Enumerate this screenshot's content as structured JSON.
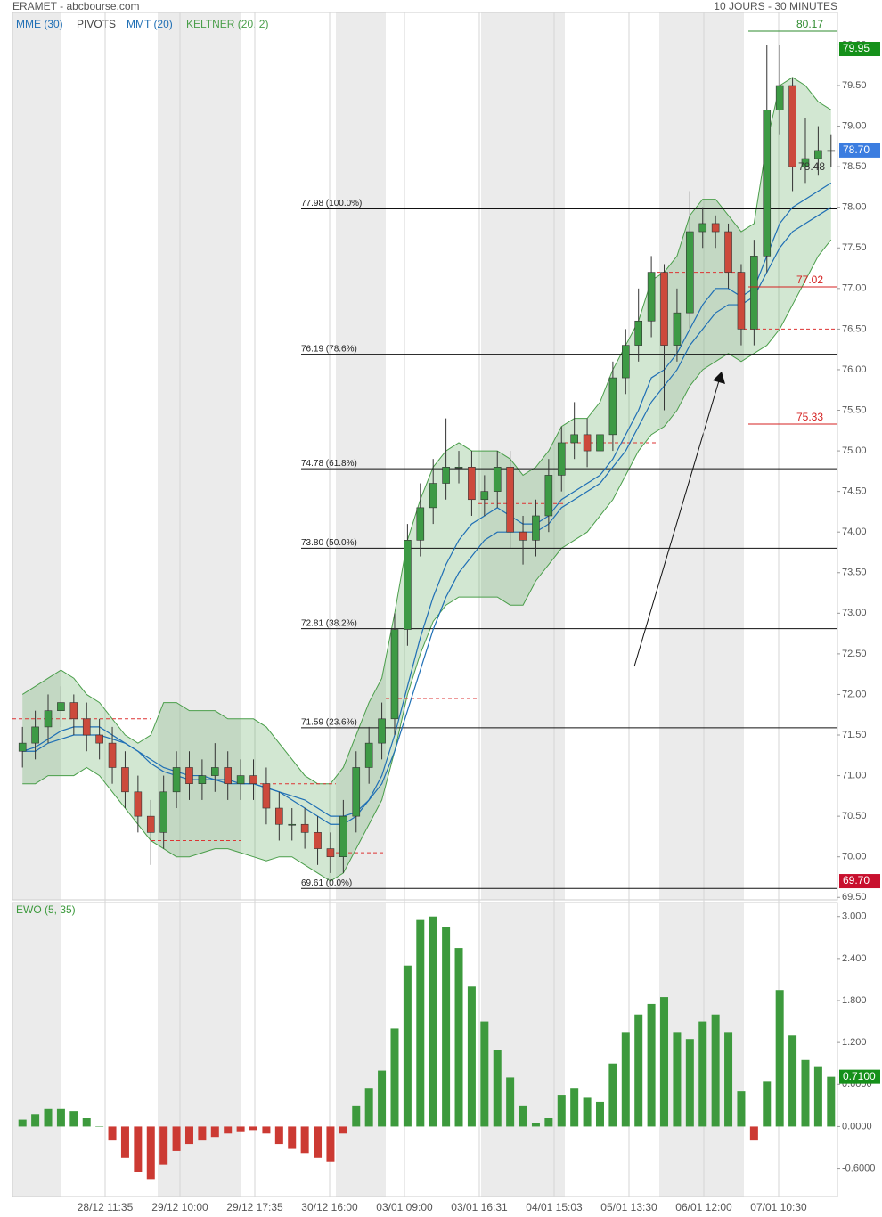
{
  "chart_data": [
    {
      "type": "candlestick",
      "title": "ERAMET - abcbourse.com",
      "subtitle": "10 JOURS - 30 MINUTES",
      "x_labels": [
        "28/12 11:35",
        "29/12 10:00",
        "29/12 17:35",
        "30/12 16:00",
        "03/01 09:00",
        "03/01 16:31",
        "04/01 15:03",
        "05/01 13:30",
        "06/01 12:00",
        "07/01 10:30"
      ],
      "ylim": [
        69.47,
        80.4
      ],
      "yticks": [
        {
          "value": 80,
          "label": "80.00"
        },
        {
          "value": 79.5,
          "label": "79.50"
        },
        {
          "value": 79,
          "label": "79.00"
        },
        {
          "value": 78.5,
          "label": "78.50"
        },
        {
          "value": 78,
          "label": "78.00"
        },
        {
          "value": 77.5,
          "label": "77.50"
        },
        {
          "value": 77,
          "label": "77.00"
        },
        {
          "value": 76.5,
          "label": "76.50"
        },
        {
          "value": 76,
          "label": "76.00"
        },
        {
          "value": 75.5,
          "label": "75.50"
        },
        {
          "value": 75,
          "label": "75.00"
        },
        {
          "value": 74.5,
          "label": "74.50"
        },
        {
          "value": 74,
          "label": "74.00"
        },
        {
          "value": 73.5,
          "label": "73.50"
        },
        {
          "value": 73,
          "label": "73.00"
        },
        {
          "value": 72.5,
          "label": "72.50"
        },
        {
          "value": 72,
          "label": "72.00"
        },
        {
          "value": 71.5,
          "label": "71.50"
        },
        {
          "value": 71,
          "label": "71.00"
        },
        {
          "value": 70.5,
          "label": "70.50"
        },
        {
          "value": 70,
          "label": "70.00"
        },
        {
          "value": 69.5,
          "label": "69.50"
        }
      ],
      "up_color": "#3d9a45",
      "down_color": "#cc4a3c",
      "open": [
        71.3,
        71.4,
        71.6,
        71.8,
        71.9,
        71.7,
        71.5,
        71.4,
        71.1,
        70.8,
        70.5,
        70.3,
        70.8,
        71.1,
        70.9,
        71.0,
        71.1,
        70.9,
        71.0,
        70.9,
        70.6,
        70.4,
        70.4,
        70.3,
        70.1,
        70.0,
        70.5,
        71.1,
        71.4,
        71.7,
        72.8,
        73.9,
        74.3,
        74.6,
        74.8,
        74.8,
        74.4,
        74.5,
        74.8,
        74.0,
        73.9,
        74.2,
        74.7,
        75.1,
        75.2,
        75.0,
        75.2,
        75.9,
        76.3,
        76.6,
        77.2,
        76.3,
        76.7,
        77.7,
        77.8,
        77.7,
        77.2,
        76.5,
        77.4,
        79.2,
        79.5,
        78.5,
        78.6,
        78.7
      ],
      "high": [
        71.6,
        71.8,
        72.0,
        72.1,
        72.0,
        71.9,
        71.7,
        71.6,
        71.3,
        71.0,
        70.7,
        71.0,
        71.3,
        71.3,
        71.2,
        71.4,
        71.3,
        71.2,
        71.2,
        71.1,
        70.8,
        70.6,
        70.6,
        70.5,
        70.3,
        70.7,
        71.3,
        71.6,
        71.9,
        73.0,
        74.1,
        74.6,
        74.9,
        75.4,
        75.0,
        75.0,
        74.7,
        75.0,
        75.0,
        74.2,
        74.4,
        74.9,
        75.3,
        75.6,
        75.4,
        75.4,
        76.1,
        76.5,
        77.0,
        77.4,
        77.3,
        77.0,
        78.2,
        78.0,
        77.9,
        77.8,
        77.3,
        77.6,
        80.0,
        80.0,
        79.6,
        79.1,
        79.0,
        78.9
      ],
      "low": [
        71.1,
        71.2,
        71.4,
        71.6,
        71.5,
        71.3,
        71.2,
        70.9,
        70.6,
        70.3,
        69.9,
        70.1,
        70.6,
        70.7,
        70.7,
        70.8,
        70.7,
        70.7,
        70.7,
        70.4,
        70.2,
        70.2,
        70.1,
        69.9,
        69.8,
        69.8,
        70.3,
        70.9,
        71.2,
        71.5,
        72.6,
        73.7,
        74.1,
        74.4,
        74.6,
        74.2,
        74.2,
        74.3,
        73.8,
        73.6,
        73.7,
        74.0,
        74.5,
        74.9,
        74.8,
        74.8,
        75.0,
        75.7,
        76.1,
        76.4,
        75.5,
        76.1,
        76.5,
        77.5,
        77.5,
        77.0,
        76.3,
        76.3,
        77.2,
        78.9,
        78.2,
        78.3,
        78.4,
        78.5
      ],
      "close": [
        71.4,
        71.6,
        71.8,
        71.9,
        71.7,
        71.5,
        71.4,
        71.1,
        70.8,
        70.5,
        70.3,
        70.8,
        71.1,
        70.9,
        71.0,
        71.1,
        70.9,
        71.0,
        70.9,
        70.6,
        70.4,
        70.4,
        70.3,
        70.1,
        70.0,
        70.5,
        71.1,
        71.4,
        71.7,
        72.8,
        73.9,
        74.3,
        74.6,
        74.8,
        74.8,
        74.4,
        74.5,
        74.8,
        74.0,
        73.9,
        74.2,
        74.7,
        75.1,
        75.2,
        75.0,
        75.2,
        75.9,
        76.3,
        76.6,
        77.2,
        76.3,
        76.7,
        77.7,
        77.8,
        77.7,
        77.2,
        76.5,
        77.4,
        79.2,
        79.5,
        78.5,
        78.6,
        78.7,
        78.7
      ],
      "series": [
        {
          "name": "MME (30)",
          "color": "#1f6fb5",
          "values": [
            71.3,
            71.3,
            71.4,
            71.45,
            71.5,
            71.5,
            71.5,
            71.45,
            71.4,
            71.3,
            71.2,
            71.1,
            71.05,
            71.0,
            71.0,
            70.95,
            70.95,
            70.9,
            70.9,
            70.85,
            70.8,
            70.75,
            70.7,
            70.6,
            70.5,
            70.5,
            70.55,
            70.7,
            70.9,
            71.3,
            71.8,
            72.3,
            72.8,
            73.2,
            73.5,
            73.7,
            73.9,
            74.0,
            74.0,
            74.0,
            74.0,
            74.1,
            74.3,
            74.4,
            74.5,
            74.6,
            74.8,
            75.0,
            75.3,
            75.6,
            75.8,
            76.0,
            76.3,
            76.5,
            76.7,
            76.8,
            76.8,
            76.9,
            77.2,
            77.5,
            77.7,
            77.8,
            77.9,
            78.0
          ]
        },
        {
          "name": "MMT (20)",
          "color": "#1f6fb5",
          "values": [
            71.3,
            71.35,
            71.45,
            71.55,
            71.6,
            71.6,
            71.6,
            71.5,
            71.4,
            71.3,
            71.15,
            71.05,
            71.0,
            70.95,
            70.95,
            70.95,
            70.9,
            70.9,
            70.9,
            70.85,
            70.8,
            70.7,
            70.6,
            70.5,
            70.4,
            70.4,
            70.5,
            70.7,
            71.0,
            71.5,
            72.1,
            72.7,
            73.2,
            73.6,
            73.9,
            74.1,
            74.2,
            74.3,
            74.2,
            74.1,
            74.1,
            74.2,
            74.4,
            74.5,
            74.6,
            74.7,
            74.9,
            75.2,
            75.5,
            75.9,
            76.0,
            76.2,
            76.5,
            76.8,
            77.0,
            77.0,
            76.9,
            77.0,
            77.4,
            77.8,
            78.0,
            78.1,
            78.2,
            78.3
          ]
        }
      ],
      "pivots": {
        "name": "PIVOTS",
        "color": "#d33",
        "values": [
          71.7,
          70.2,
          70.9,
          70.05,
          71.95,
          74.35,
          75.1,
          77.2,
          76.5
        ]
      },
      "keltner": {
        "name": "KELTNER (20, 2)",
        "color": "#4a9e4a",
        "upper": [
          72.0,
          72.1,
          72.2,
          72.3,
          72.2,
          72.0,
          71.9,
          71.7,
          71.5,
          71.4,
          71.5,
          71.9,
          71.9,
          71.8,
          71.8,
          71.8,
          71.7,
          71.7,
          71.7,
          71.6,
          71.4,
          71.2,
          71.0,
          70.9,
          70.9,
          71.1,
          71.5,
          71.9,
          72.2,
          73.0,
          73.9,
          74.4,
          74.8,
          75.0,
          75.1,
          75.0,
          75.0,
          75.0,
          74.9,
          74.7,
          74.8,
          75.0,
          75.3,
          75.4,
          75.4,
          75.6,
          76.0,
          76.3,
          76.6,
          77.1,
          77.2,
          77.4,
          77.9,
          78.1,
          78.1,
          77.9,
          77.7,
          77.8,
          78.8,
          79.5,
          79.6,
          79.5,
          79.3,
          79.2
        ],
        "lower": [
          70.9,
          70.9,
          71.0,
          71.0,
          71.0,
          71.1,
          71.0,
          70.8,
          70.6,
          70.4,
          70.2,
          70.1,
          70.0,
          70.0,
          70.05,
          70.1,
          70.1,
          70.05,
          70.0,
          69.95,
          70.0,
          70.0,
          69.9,
          69.8,
          69.7,
          69.8,
          70.1,
          70.4,
          70.7,
          71.3,
          72.0,
          72.5,
          72.9,
          73.1,
          73.2,
          73.2,
          73.2,
          73.2,
          73.1,
          73.1,
          73.4,
          73.6,
          73.8,
          73.9,
          74.0,
          74.2,
          74.4,
          74.7,
          75.0,
          75.2,
          75.3,
          75.5,
          75.8,
          76.0,
          76.1,
          76.2,
          76.1,
          76.2,
          76.3,
          76.5,
          76.8,
          77.1,
          77.4,
          77.6
        ]
      },
      "fibonacci": [
        {
          "value": 77.98,
          "label": "77.98  (100.0%)"
        },
        {
          "value": 76.19,
          "label": "76.19  (78.6%)"
        },
        {
          "value": 74.78,
          "label": "74.78  (61.8%)"
        },
        {
          "value": 73.8,
          "label": "73.80  (50.0%)"
        },
        {
          "value": 72.81,
          "label": "72.81  (38.2%)"
        },
        {
          "value": 71.59,
          "label": "71.59  (23.6%)"
        },
        {
          "value": 69.61,
          "label": "69.61  (0.0%)"
        }
      ],
      "levels": [
        {
          "value": 80.17,
          "color": "#2e8b2e"
        },
        {
          "value": 77.02,
          "color": "#d42020"
        },
        {
          "value": 75.33,
          "color": "#d42020"
        }
      ],
      "inline_label": 78.48,
      "price_tags": [
        {
          "value": 79.95,
          "label": "79.95",
          "color": "#15901a"
        },
        {
          "value": 78.7,
          "label": "78.70",
          "color": "#3b7de0"
        },
        {
          "value": 69.7,
          "label": "69.70",
          "color": "#c8102e"
        }
      ]
    },
    {
      "type": "bar",
      "title": "EWO (5, 35)",
      "ylim": [
        -1.0,
        3.2
      ],
      "yticks": [
        {
          "value": 3,
          "label": "3.000"
        },
        {
          "value": 2.4,
          "label": "2.400"
        },
        {
          "value": 1.8,
          "label": "1.800"
        },
        {
          "value": 1.2,
          "label": "1.200"
        },
        {
          "value": 0.6,
          "label": "0.6000"
        },
        {
          "value": 0,
          "label": "0.0000"
        },
        {
          "value": -0.6,
          "label": "-0.6000"
        }
      ],
      "pos_color": "#3d9a3d",
      "neg_color": "#cc3a33",
      "values": [
        0.1,
        0.18,
        0.25,
        0.25,
        0.22,
        0.12,
        0.0,
        -0.2,
        -0.45,
        -0.65,
        -0.75,
        -0.55,
        -0.35,
        -0.25,
        -0.2,
        -0.15,
        -0.1,
        -0.08,
        -0.05,
        -0.1,
        -0.25,
        -0.32,
        -0.38,
        -0.45,
        -0.5,
        -0.1,
        0.3,
        0.55,
        0.8,
        1.4,
        2.3,
        2.95,
        3.0,
        2.85,
        2.55,
        2.0,
        1.5,
        1.1,
        0.7,
        0.3,
        0.05,
        0.12,
        0.45,
        0.55,
        0.42,
        0.35,
        0.9,
        1.35,
        1.6,
        1.75,
        1.85,
        1.35,
        1.25,
        1.5,
        1.6,
        1.35,
        0.5,
        -0.2,
        0.65,
        1.95,
        1.3,
        0.95,
        0.85,
        0.71
      ],
      "last_tag": {
        "value": 0.71,
        "label": "0.7100",
        "color": "#15901a"
      }
    }
  ]
}
